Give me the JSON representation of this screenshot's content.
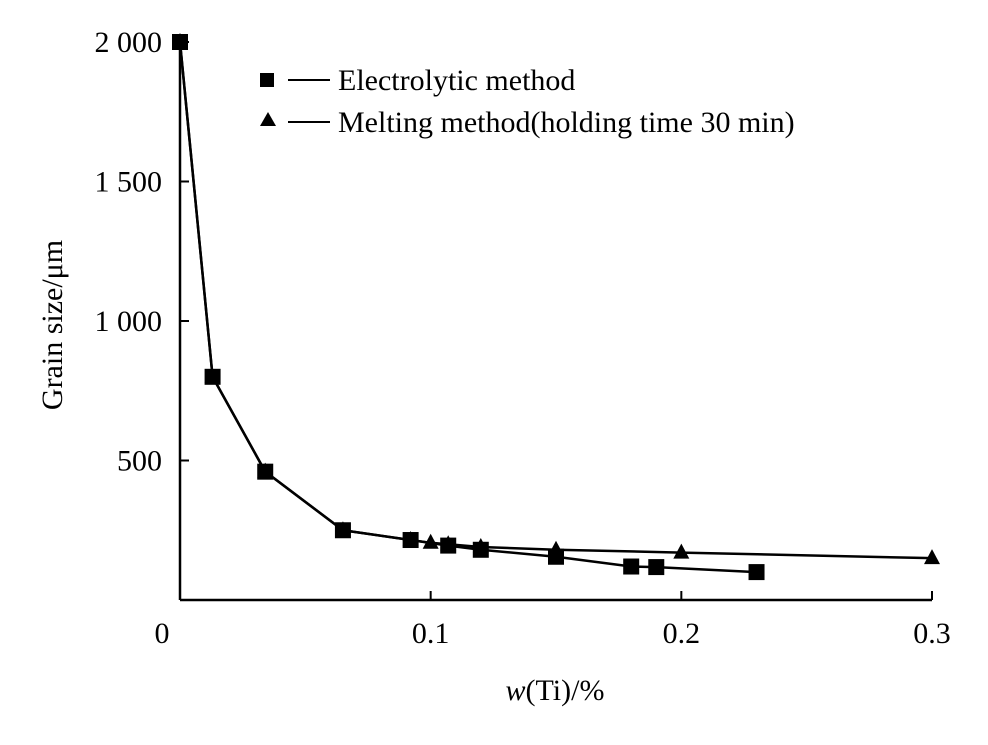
{
  "chart_data": {
    "type": "line",
    "xlabel": "w(Ti)/%",
    "xlabel_var": "w",
    "xlabel_rest": "(Ti)/%",
    "ylabel": "Grain size/μm",
    "xlim": [
      0,
      0.3
    ],
    "ylim": [
      0,
      2000
    ],
    "x_ticks": [
      0.1,
      0.2,
      0.3
    ],
    "x_tick_labels": [
      "0.1",
      "0.2",
      "0.3"
    ],
    "y_ticks": [
      500,
      1000,
      1500,
      2000
    ],
    "y_tick_labels": [
      "500",
      "1 000",
      "1 500",
      "2 000"
    ],
    "origin_label": "0",
    "grid": false,
    "legend_position": "top-right",
    "series": [
      {
        "name": "Electrolytic method",
        "marker": "square",
        "x": [
          0.0,
          0.013,
          0.034,
          0.065,
          0.092,
          0.107,
          0.12,
          0.15,
          0.18,
          0.19,
          0.23
        ],
        "y": [
          2000,
          800,
          460,
          250,
          215,
          195,
          180,
          155,
          120,
          118,
          100
        ]
      },
      {
        "name": "Melting method(holding time 30 min)",
        "marker": "triangle",
        "x": [
          0.0,
          0.013,
          0.034,
          0.065,
          0.092,
          0.1,
          0.107,
          0.12,
          0.15,
          0.2,
          0.3
        ],
        "y": [
          2000,
          800,
          460,
          250,
          215,
          205,
          200,
          190,
          180,
          170,
          150
        ]
      }
    ]
  }
}
